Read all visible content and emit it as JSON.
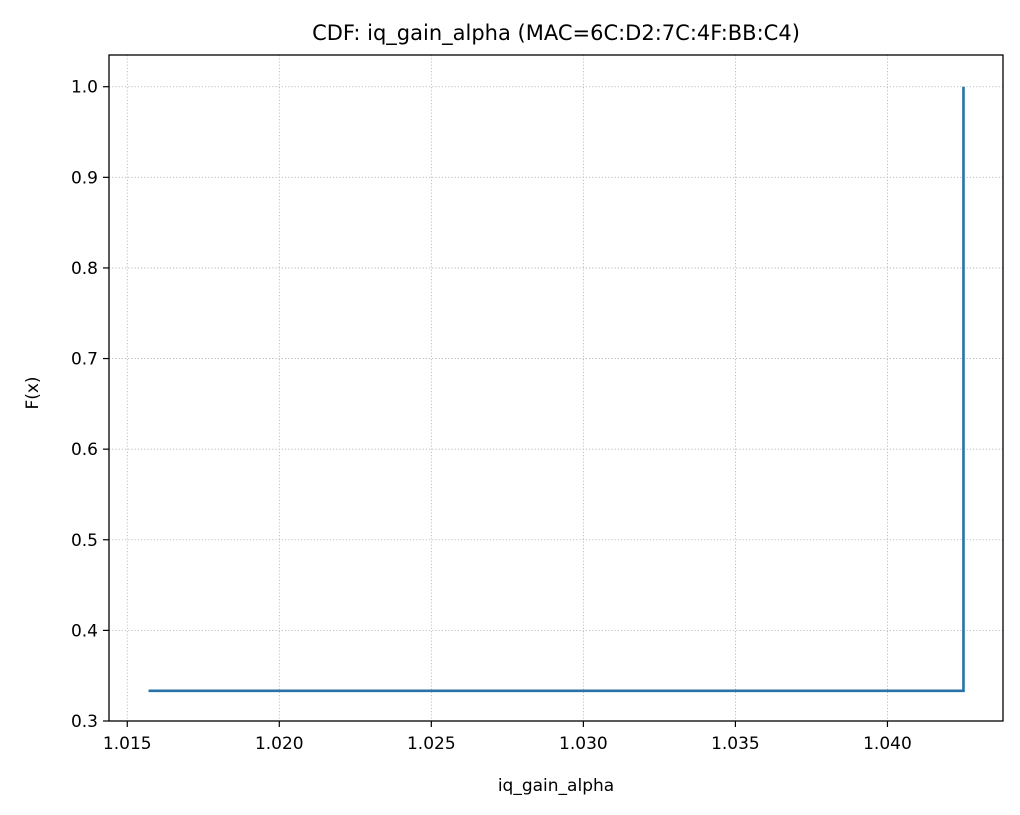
{
  "chart_data": {
    "type": "line",
    "title": "CDF: iq_gain_alpha (MAC=6C:D2:7C:4F:BB:C4)",
    "xlabel": "iq_gain_alpha",
    "ylabel": "F(x)",
    "xlim": [
      1.0144,
      1.0438
    ],
    "ylim": [
      0.3,
      1.035
    ],
    "grid": true,
    "grid_style": "dotted",
    "step": "post",
    "xticks": [
      1.015,
      1.02,
      1.025,
      1.03,
      1.035,
      1.04
    ],
    "xtick_labels": [
      "1.015",
      "1.020",
      "1.025",
      "1.030",
      "1.035",
      "1.040"
    ],
    "yticks": [
      0.3,
      0.4,
      0.5,
      0.6,
      0.7,
      0.8,
      0.9,
      1.0
    ],
    "ytick_labels": [
      "0.3",
      "0.4",
      "0.5",
      "0.6",
      "0.7",
      "0.8",
      "0.9",
      "1.0"
    ],
    "series": [
      {
        "color": "#2872a8",
        "x": [
          1.0157,
          1.0425,
          1.0425
        ],
        "y": [
          0.3333,
          0.3333,
          1.0
        ]
      }
    ]
  }
}
